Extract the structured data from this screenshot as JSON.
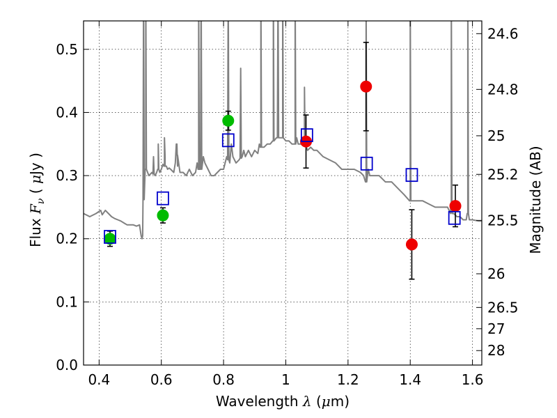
{
  "chart_data": {
    "type": "scatter",
    "xlabel": "Wavelength  λ (μm)",
    "ylabel": "Flux  F_ν  ( μJy )",
    "ylabel_parts": {
      "prefix": "Flux  ",
      "symbol": "F",
      "subscript": "ν",
      "open": "  ( ",
      "mu": "μ",
      "unit": "Jy",
      "close": " )"
    },
    "xlabel_parts": {
      "prefix": "Wavelength  ",
      "symbol": "λ",
      "open": " (",
      "mu": "μ",
      "unit": "m)"
    },
    "y2label": "Magnitude (AB)",
    "xlim": [
      0.35,
      1.63
    ],
    "ylim": [
      0.0,
      0.545
    ],
    "grid": true,
    "x_ticks": [
      {
        "value": 0.4,
        "label": "0.4"
      },
      {
        "value": 0.6,
        "label": "0.6"
      },
      {
        "value": 0.8,
        "label": "0.8"
      },
      {
        "value": 1.0,
        "label": "1"
      },
      {
        "value": 1.2,
        "label": "1.2"
      },
      {
        "value": 1.4,
        "label": "1.4"
      },
      {
        "value": 1.6,
        "label": "1.6"
      }
    ],
    "y_ticks": [
      {
        "value": 0.0,
        "label": "0.0"
      },
      {
        "value": 0.1,
        "label": "0.1"
      },
      {
        "value": 0.2,
        "label": "0.2"
      },
      {
        "value": 0.3,
        "label": "0.3"
      },
      {
        "value": 0.4,
        "label": "0.4"
      },
      {
        "value": 0.5,
        "label": "0.5"
      }
    ],
    "y2_ticks": [
      {
        "value": 24.6,
        "label": "24.6"
      },
      {
        "value": 24.8,
        "label": "24.8"
      },
      {
        "value": 25.0,
        "label": "25"
      },
      {
        "value": 25.2,
        "label": "25.2"
      },
      {
        "value": 25.5,
        "label": "25.5"
      },
      {
        "value": 26.0,
        "label": "26"
      },
      {
        "value": 26.5,
        "label": "26.5"
      },
      {
        "value": 27.0,
        "label": "27"
      },
      {
        "value": 28.0,
        "label": "28"
      }
    ],
    "colors": {
      "model": "#808080",
      "green": "#00bb00",
      "red": "#ee0000",
      "square": "#0000cc",
      "error": "#000000"
    },
    "series": [
      {
        "name": "model spectrum",
        "kind": "line",
        "x": [
          0.35,
          0.37,
          0.39,
          0.405,
          0.41,
          0.42,
          0.43,
          0.44,
          0.45,
          0.46,
          0.47,
          0.48,
          0.49,
          0.5,
          0.51,
          0.52,
          0.53,
          0.535,
          0.538,
          0.54,
          0.545,
          0.55,
          0.56,
          0.57,
          0.58,
          0.585,
          0.59,
          0.595,
          0.6,
          0.605,
          0.61,
          0.612,
          0.616,
          0.62,
          0.625,
          0.63,
          0.64,
          0.645,
          0.648,
          0.652,
          0.66,
          0.67,
          0.68,
          0.69,
          0.7,
          0.71,
          0.715,
          0.72,
          0.73,
          0.735,
          0.74,
          0.75,
          0.76,
          0.77,
          0.78,
          0.79,
          0.8,
          0.81,
          0.82,
          0.825,
          0.83,
          0.84,
          0.85,
          0.86,
          0.865,
          0.87,
          0.88,
          0.89,
          0.9,
          0.91,
          0.915,
          0.92,
          0.93,
          0.94,
          0.95,
          0.96,
          0.97,
          0.98,
          0.99,
          1.0,
          1.01,
          1.02,
          1.03,
          1.035,
          1.04,
          1.05,
          1.06,
          1.07,
          1.08,
          1.09,
          1.1,
          1.12,
          1.14,
          1.16,
          1.18,
          1.2,
          1.22,
          1.24,
          1.25,
          1.258,
          1.26,
          1.265,
          1.27,
          1.28,
          1.3,
          1.32,
          1.34,
          1.36,
          1.38,
          1.4,
          1.42,
          1.44,
          1.46,
          1.48,
          1.5,
          1.52,
          1.53,
          1.532,
          1.535,
          1.54,
          1.55,
          1.56,
          1.57,
          1.58,
          1.585,
          1.59,
          1.6,
          1.62,
          1.63
        ],
        "y": [
          0.24,
          0.235,
          0.24,
          0.245,
          0.238,
          0.245,
          0.24,
          0.235,
          0.232,
          0.23,
          0.228,
          0.225,
          0.222,
          0.222,
          0.222,
          0.22,
          0.222,
          0.205,
          0.2,
          0.205,
          0.3,
          0.31,
          0.3,
          0.305,
          0.3,
          0.305,
          0.31,
          0.305,
          0.31,
          0.318,
          0.315,
          0.33,
          0.315,
          0.31,
          0.312,
          0.31,
          0.305,
          0.32,
          0.35,
          0.315,
          0.305,
          0.305,
          0.3,
          0.31,
          0.3,
          0.305,
          0.32,
          0.31,
          0.31,
          0.33,
          0.32,
          0.31,
          0.3,
          0.3,
          0.305,
          0.31,
          0.31,
          0.33,
          0.32,
          0.35,
          0.33,
          0.32,
          0.325,
          0.33,
          0.34,
          0.33,
          0.34,
          0.33,
          0.34,
          0.335,
          0.35,
          0.345,
          0.345,
          0.35,
          0.35,
          0.355,
          0.36,
          0.36,
          0.36,
          0.355,
          0.355,
          0.35,
          0.35,
          0.36,
          0.35,
          0.35,
          0.35,
          0.34,
          0.345,
          0.34,
          0.34,
          0.33,
          0.325,
          0.32,
          0.31,
          0.31,
          0.31,
          0.305,
          0.3,
          0.29,
          0.3,
          0.31,
          0.3,
          0.3,
          0.3,
          0.29,
          0.29,
          0.28,
          0.27,
          0.26,
          0.26,
          0.26,
          0.255,
          0.25,
          0.25,
          0.25,
          0.24,
          0.25,
          0.24,
          0.24,
          0.235,
          0.235,
          0.23,
          0.23,
          0.24,
          0.23,
          0.23,
          0.228,
          0.228
        ],
        "spikes": [
          0.543,
          0.55,
          0.575,
          0.59,
          0.61,
          0.65,
          0.72,
          0.728,
          0.815,
          0.855,
          0.92,
          0.96,
          0.975,
          0.99,
          1.03,
          1.06,
          1.258,
          1.4,
          1.532,
          1.585
        ],
        "spike_tops": [
          0.6,
          0.6,
          0.33,
          0.35,
          0.36,
          0.35,
          0.6,
          0.6,
          0.6,
          0.47,
          0.6,
          0.6,
          0.6,
          0.6,
          0.6,
          0.44,
          0.6,
          0.6,
          0.6,
          0.6
        ]
      },
      {
        "name": "green photometry",
        "kind": "points",
        "marker": "circle",
        "color": "green",
        "points": [
          {
            "x": 0.435,
            "y": 0.2,
            "err": 0.012
          },
          {
            "x": 0.605,
            "y": 0.237,
            "err": 0.012
          },
          {
            "x": 0.815,
            "y": 0.387,
            "err": 0.015
          }
        ]
      },
      {
        "name": "red photometry",
        "kind": "points",
        "marker": "circle",
        "color": "red",
        "points": [
          {
            "x": 1.065,
            "y": 0.354,
            "err": 0.042
          },
          {
            "x": 1.258,
            "y": 0.441,
            "err": 0.07
          },
          {
            "x": 1.405,
            "y": 0.191,
            "err": 0.055
          },
          {
            "x": 1.545,
            "y": 0.252,
            "err": 0.033
          }
        ]
      },
      {
        "name": "model photometry",
        "kind": "points",
        "marker": "square",
        "color": "square",
        "points": [
          {
            "x": 0.435,
            "y": 0.203
          },
          {
            "x": 0.605,
            "y": 0.264
          },
          {
            "x": 0.815,
            "y": 0.356
          },
          {
            "x": 1.068,
            "y": 0.364
          },
          {
            "x": 1.26,
            "y": 0.319
          },
          {
            "x": 1.405,
            "y": 0.301
          },
          {
            "x": 1.542,
            "y": 0.233
          }
        ]
      }
    ]
  }
}
